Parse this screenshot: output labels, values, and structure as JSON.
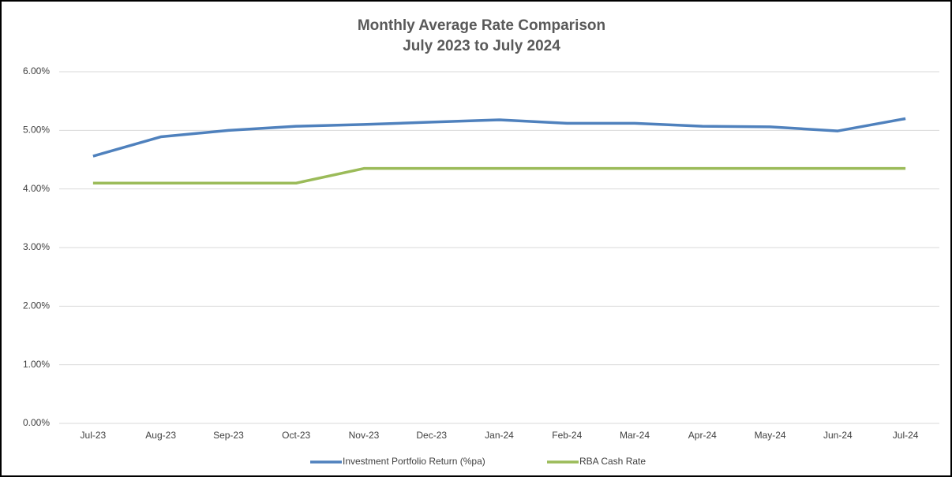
{
  "chart_data": {
    "type": "line",
    "title": "Monthly Average Rate Comparison",
    "subtitle": "July 2023 to July 2024",
    "categories": [
      "Jul-23",
      "Aug-23",
      "Sep-23",
      "Oct-23",
      "Nov-23",
      "Dec-23",
      "Jan-24",
      "Feb-24",
      "Mar-24",
      "Apr-24",
      "May-24",
      "Jun-24",
      "Jul-24"
    ],
    "series": [
      {
        "name": "Investment Portfolio Return (%pa)",
        "color": "#4f81bd",
        "values": [
          4.56,
          4.89,
          5.0,
          5.07,
          5.1,
          5.14,
          5.18,
          5.12,
          5.12,
          5.07,
          5.06,
          4.99,
          5.2
        ]
      },
      {
        "name": "RBA Cash Rate",
        "color": "#9bbb59",
        "values": [
          4.1,
          4.1,
          4.1,
          4.1,
          4.35,
          4.35,
          4.35,
          4.35,
          4.35,
          4.35,
          4.35,
          4.35,
          4.35
        ]
      }
    ],
    "ylim": [
      0,
      6
    ],
    "yticks": [
      {
        "value": 0,
        "label": "0.00%"
      },
      {
        "value": 1,
        "label": "1.00%"
      },
      {
        "value": 2,
        "label": "2.00%"
      },
      {
        "value": 3,
        "label": "3.00%"
      },
      {
        "value": 4,
        "label": "4.00%"
      },
      {
        "value": 5,
        "label": "5.00%"
      },
      {
        "value": 6,
        "label": "6.00%"
      }
    ],
    "grid": true,
    "legend": "bottom"
  }
}
